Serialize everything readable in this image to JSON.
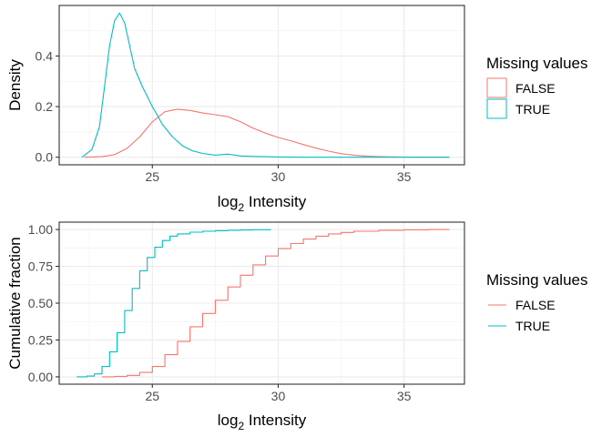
{
  "colors": {
    "FALSE": "#F8766D",
    "TRUE": "#00BFC4"
  },
  "chart_data": [
    {
      "type": "line",
      "xlabel_main": "log",
      "xlabel_sub": "2",
      "xlabel_rest": " Intensity",
      "ylabel": "Density",
      "xlim": [
        21.3,
        37.4
      ],
      "ylim": [
        -0.03,
        0.6
      ],
      "xticks": [
        25,
        30,
        35
      ],
      "yticks": [
        0.0,
        0.2,
        0.4
      ],
      "ytick_labels": [
        "0.0",
        "0.2",
        "0.4"
      ],
      "grid": true,
      "legend": {
        "title": "Missing values",
        "position": "right",
        "glyph": "box"
      },
      "series": [
        {
          "name": "FALSE",
          "x": [
            22.3,
            23.0,
            23.5,
            24.0,
            24.5,
            25.0,
            25.5,
            26.0,
            26.5,
            27.0,
            27.5,
            28.0,
            28.5,
            29.0,
            29.5,
            30.0,
            30.5,
            31.0,
            31.5,
            32.0,
            32.5,
            33.0,
            33.5,
            34.0,
            35.0,
            36.0,
            36.8
          ],
          "y": [
            0.0,
            0.002,
            0.01,
            0.035,
            0.08,
            0.14,
            0.18,
            0.19,
            0.185,
            0.175,
            0.168,
            0.16,
            0.14,
            0.115,
            0.095,
            0.078,
            0.065,
            0.05,
            0.036,
            0.024,
            0.014,
            0.008,
            0.004,
            0.002,
            0.0005,
            0.0,
            0.0
          ]
        },
        {
          "name": "TRUE",
          "x": [
            22.2,
            22.6,
            22.9,
            23.1,
            23.3,
            23.5,
            23.7,
            23.9,
            24.1,
            24.3,
            24.6,
            25.0,
            25.4,
            25.8,
            26.2,
            26.6,
            27.0,
            27.5,
            28.0,
            28.5,
            29.0,
            29.5,
            30.0,
            31.0,
            32.0,
            33.0,
            34.0,
            35.0,
            36.8
          ],
          "y": [
            0.0,
            0.03,
            0.12,
            0.28,
            0.44,
            0.54,
            0.57,
            0.53,
            0.44,
            0.35,
            0.28,
            0.2,
            0.13,
            0.08,
            0.045,
            0.025,
            0.015,
            0.008,
            0.012,
            0.005,
            0.003,
            0.002,
            0.001,
            0.0,
            0.0,
            0.0,
            0.0,
            0.0,
            0.0
          ]
        }
      ]
    },
    {
      "type": "line",
      "xlabel_main": "log",
      "xlabel_sub": "2",
      "xlabel_rest": " Intensity",
      "ylabel": "Cumulative fraction",
      "xlim": [
        21.3,
        37.4
      ],
      "ylim": [
        -0.05,
        1.05
      ],
      "xticks": [
        25,
        30,
        35
      ],
      "yticks": [
        0.0,
        0.25,
        0.5,
        0.75,
        1.0
      ],
      "ytick_labels": [
        "0.00",
        "0.25",
        "0.50",
        "0.75",
        "1.00"
      ],
      "grid": true,
      "legend": {
        "title": "Missing values",
        "position": "right",
        "glyph": "line"
      },
      "series": [
        {
          "name": "FALSE",
          "x": [
            23.0,
            23.5,
            24.0,
            24.5,
            25.0,
            25.5,
            26.0,
            26.5,
            27.0,
            27.5,
            28.0,
            28.5,
            29.0,
            29.5,
            30.0,
            30.5,
            31.0,
            31.5,
            32.0,
            32.5,
            33.0,
            34.0,
            35.0,
            36.0,
            36.8
          ],
          "y": [
            0.0,
            0.003,
            0.01,
            0.03,
            0.07,
            0.15,
            0.24,
            0.34,
            0.43,
            0.52,
            0.61,
            0.69,
            0.76,
            0.82,
            0.87,
            0.905,
            0.935,
            0.955,
            0.97,
            0.98,
            0.988,
            0.995,
            0.998,
            1.0,
            1.0
          ]
        },
        {
          "name": "TRUE",
          "x": [
            22.0,
            22.4,
            22.7,
            23.0,
            23.3,
            23.6,
            23.9,
            24.2,
            24.5,
            24.8,
            25.1,
            25.4,
            25.7,
            26.0,
            26.5,
            27.0,
            27.5,
            28.0,
            28.5,
            29.0,
            29.7
          ],
          "y": [
            0.0,
            0.005,
            0.02,
            0.07,
            0.17,
            0.3,
            0.45,
            0.6,
            0.72,
            0.81,
            0.88,
            0.925,
            0.955,
            0.97,
            0.982,
            0.988,
            0.992,
            0.995,
            0.997,
            0.999,
            1.0
          ]
        }
      ]
    }
  ]
}
